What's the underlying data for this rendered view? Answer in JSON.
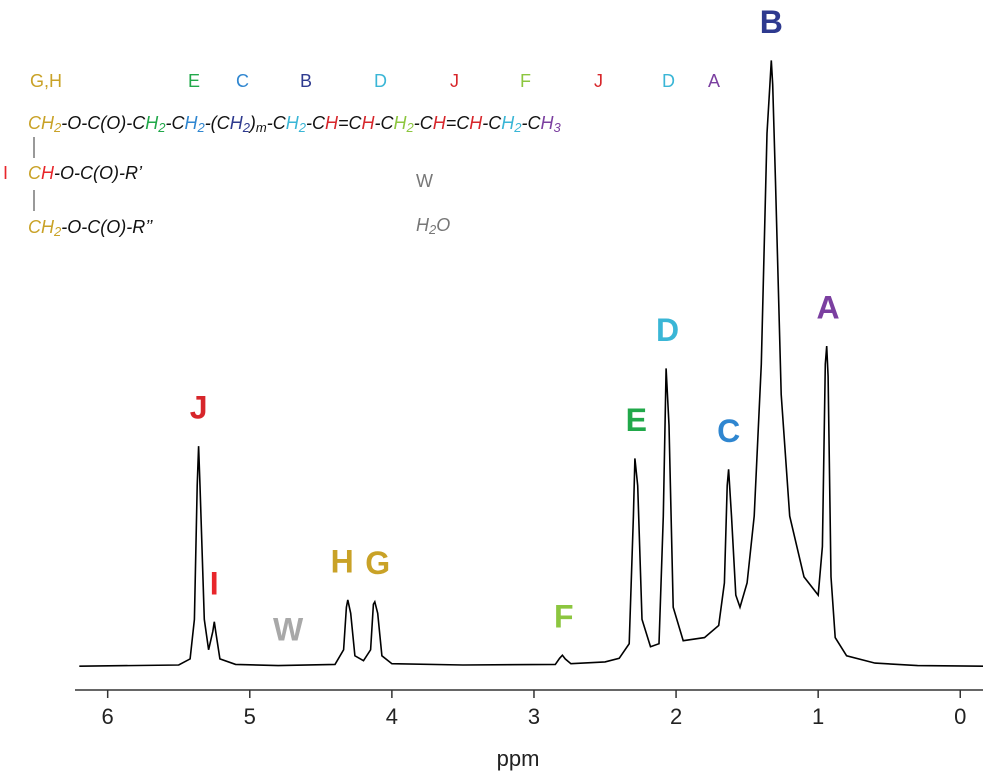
{
  "chart_data": {
    "type": "line",
    "color": "#000000",
    "x": [
      6.2,
      5.5,
      5.42,
      5.39,
      5.37,
      5.36,
      5.35,
      5.32,
      5.29,
      5.26,
      5.25,
      5.24,
      5.21,
      5.1,
      4.8,
      4.4,
      4.34,
      4.32,
      4.31,
      4.29,
      4.26,
      4.2,
      4.15,
      4.13,
      4.12,
      4.1,
      4.07,
      4.0,
      3.5,
      2.85,
      2.82,
      2.8,
      2.78,
      2.74,
      2.5,
      2.4,
      2.33,
      2.3,
      2.29,
      2.27,
      2.24,
      2.18,
      2.12,
      2.09,
      2.07,
      2.05,
      2.02,
      1.95,
      1.8,
      1.7,
      1.66,
      1.64,
      1.63,
      1.61,
      1.58,
      1.55,
      1.5,
      1.45,
      1.4,
      1.36,
      1.34,
      1.33,
      1.32,
      1.3,
      1.26,
      1.2,
      1.1,
      1.0,
      0.97,
      0.95,
      0.94,
      0.93,
      0.91,
      0.88,
      0.8,
      0.6,
      0.3,
      -0.16
    ],
    "values": [
      0.3,
      0.5,
      1.5,
      8,
      30,
      36.5,
      30,
      8,
      3,
      6,
      7.6,
      6,
      1.5,
      0.6,
      0.4,
      0.6,
      3,
      10,
      11.2,
      9,
      2,
      1.2,
      3,
      10.5,
      10.9,
      9,
      2,
      0.7,
      0.5,
      0.6,
      1.6,
      2.1,
      1.5,
      0.7,
      1.0,
      1.6,
      4,
      25,
      34.5,
      30,
      8,
      3.5,
      4,
      25,
      49.3,
      40,
      10,
      4.5,
      5,
      7,
      14,
      30,
      32.7,
      25,
      12,
      10,
      14,
      25,
      50,
      88,
      96,
      100,
      96,
      80,
      45,
      25,
      15,
      12,
      20,
      50,
      53,
      48,
      15,
      5,
      2,
      0.8,
      0.4,
      0.3
    ],
    "xlim": [
      6.23,
      -0.16
    ],
    "ylim": [
      0,
      105
    ],
    "xticks": [
      6,
      5,
      4,
      3,
      2,
      1,
      0
    ],
    "xlabel": "ppm",
    "annotations": [
      {
        "text": "J",
        "color": "#d7262b",
        "x": 5.36
      },
      {
        "text": "I",
        "color": "#e8262b",
        "x": 5.25
      },
      {
        "text": "W",
        "color": "#a8a8a8",
        "x": 4.73
      },
      {
        "text": "H",
        "color": "#c9a227",
        "x": 4.35
      },
      {
        "text": "G",
        "color": "#c9a227",
        "x": 4.1
      },
      {
        "text": "F",
        "color": "#8cc63f",
        "x": 2.79
      },
      {
        "text": "E",
        "color": "#21a84a",
        "x": 2.28
      },
      {
        "text": "D",
        "color": "#3ab6d6",
        "x": 2.06
      },
      {
        "text": "C",
        "color": "#2f86d0",
        "x": 1.63
      },
      {
        "text": "B",
        "color": "#2e3a8f",
        "x": 1.33
      },
      {
        "text": "A",
        "color": "#7b3fa0",
        "x": 0.93
      }
    ]
  },
  "structure": {
    "labels": [
      {
        "text": "G,H",
        "color": "#c9a227"
      },
      {
        "text": "E",
        "color": "#21a84a"
      },
      {
        "text": "C",
        "color": "#2f86d0"
      },
      {
        "text": "B",
        "color": "#2e3a8f"
      },
      {
        "text": "D",
        "color": "#3ab6d6"
      },
      {
        "text": "J",
        "color": "#d7262b"
      },
      {
        "text": "F",
        "color": "#8cc63f"
      },
      {
        "text": "J",
        "color": "#d7262b"
      },
      {
        "text": "D",
        "color": "#3ab6d6"
      },
      {
        "text": "A",
        "color": "#7b3fa0"
      }
    ],
    "side_label": {
      "text": "I",
      "color": "#e8262b"
    },
    "lines": [
      [
        {
          "text": "C",
          "color": "#c9a227"
        },
        {
          "text": "H",
          "color": "#c9a227",
          "sub": "2"
        },
        {
          "text": "-O-C(O)-C",
          "color": "#111111"
        },
        {
          "text": "H",
          "color": "#21a84a",
          "sub": "2"
        },
        {
          "text": "-C",
          "color": "#111111"
        },
        {
          "text": "H",
          "color": "#2f86d0",
          "sub": "2"
        },
        {
          "text": "-(C",
          "color": "#111111"
        },
        {
          "text": "H",
          "color": "#2e3a8f",
          "sub": "2"
        },
        {
          "text": ")",
          "color": "#111111",
          "sub": "m"
        },
        {
          "text": "-C",
          "color": "#111111"
        },
        {
          "text": "H",
          "color": "#3ab6d6",
          "sub": "2"
        },
        {
          "text": "-C",
          "color": "#111111"
        },
        {
          "text": "H",
          "color": "#d7262b"
        },
        {
          "text": "=C",
          "color": "#111111"
        },
        {
          "text": "H",
          "color": "#d7262b"
        },
        {
          "text": "-C",
          "color": "#111111"
        },
        {
          "text": "H",
          "color": "#8cc63f",
          "sub": "2"
        },
        {
          "text": "-C",
          "color": "#111111"
        },
        {
          "text": "H",
          "color": "#d7262b"
        },
        {
          "text": "=C",
          "color": "#111111"
        },
        {
          "text": "H",
          "color": "#d7262b"
        },
        {
          "text": "-C",
          "color": "#111111"
        },
        {
          "text": "H",
          "color": "#3ab6d6",
          "sub": "2"
        },
        {
          "text": "-C",
          "color": "#111111"
        },
        {
          "text": "H",
          "color": "#7b3fa0",
          "sub": "3"
        }
      ],
      [
        {
          "text": "C",
          "color": "#c9a227"
        },
        {
          "text": "H",
          "color": "#e8262b"
        },
        {
          "text": "-O-C(O)-R’",
          "color": "#111111"
        }
      ],
      [
        {
          "text": "C",
          "color": "#c9a227"
        },
        {
          "text": "H",
          "color": "#c9a227",
          "sub": "2"
        },
        {
          "text": "-O-C(O)-R’’",
          "color": "#111111"
        }
      ]
    ],
    "water_label": "W",
    "water_formula": [
      {
        "text": "H",
        "color": "#777777",
        "sub": "2"
      },
      {
        "text": "O",
        "color": "#777777"
      }
    ]
  }
}
